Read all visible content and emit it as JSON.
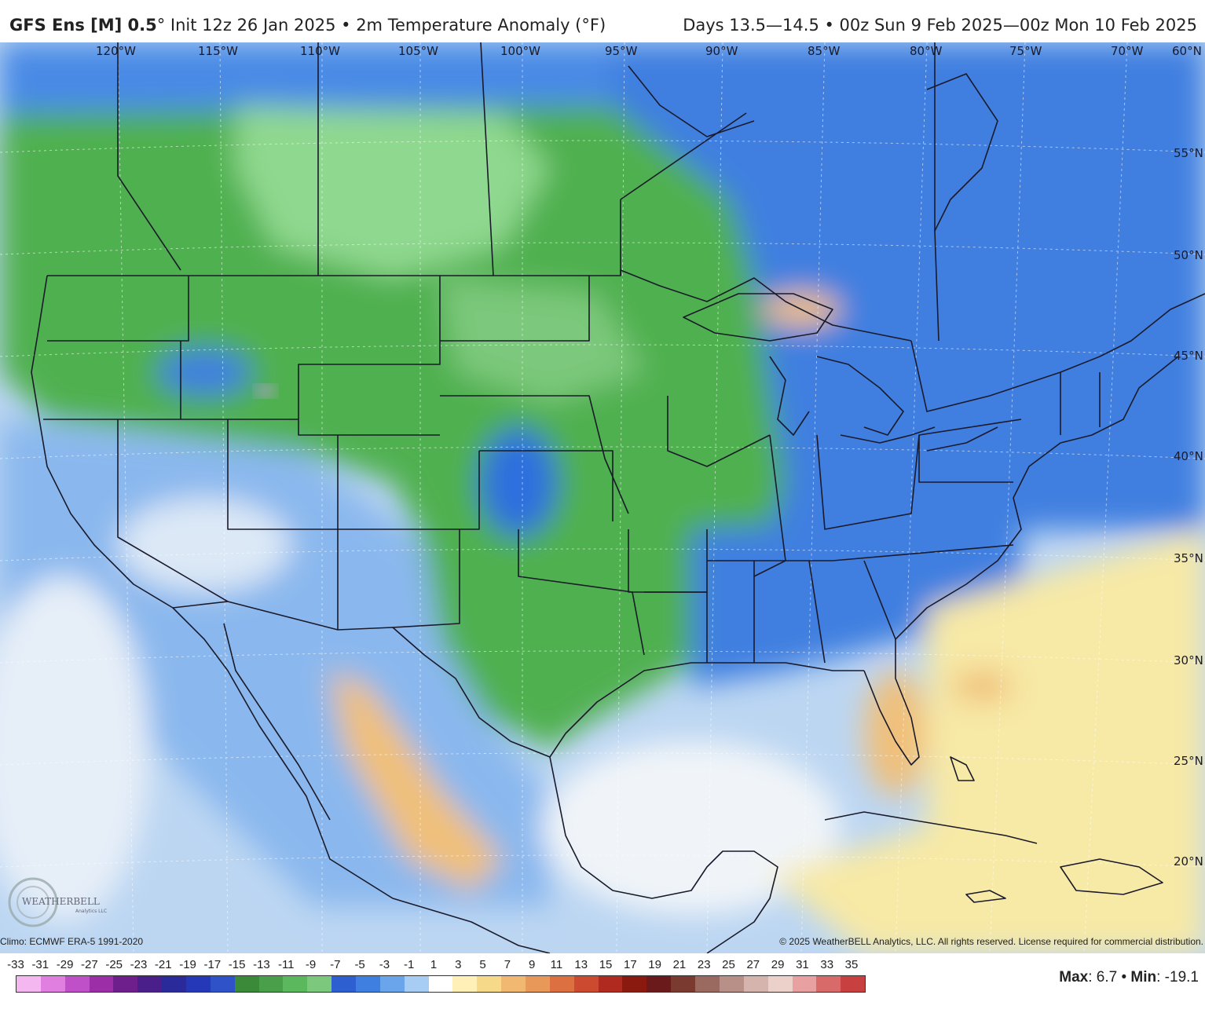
{
  "header": {
    "model": "GFS Ens [M] 0.5",
    "degree": "°",
    "init": " Init 12z 26 Jan 2025 • 2m Temperature Anomaly (°F)",
    "valid": "Days 13.5—14.5 • 00z Sun 9 Feb 2025—00z Mon 10 Feb 2025"
  },
  "map": {
    "lon_labels": [
      "120°W",
      "115°W",
      "110°W",
      "105°W",
      "100°W",
      "95°W",
      "90°W",
      "85°W",
      "80°W",
      "75°W",
      "70°W"
    ],
    "lat_labels": [
      "60°N",
      "55°N",
      "50°N",
      "45°N",
      "40°N",
      "35°N",
      "30°N",
      "25°N",
      "20°N"
    ],
    "colors": {
      "warm": "#f7e9a6",
      "warmer": "#f0c07a",
      "warmest": "#e8a070",
      "neutral": "#f0f4f8",
      "cool_light": "#bcd6f2",
      "cool": "#6aa4ea",
      "cold": "#2f6fde",
      "green_light": "#7fd07f",
      "green": "#4fb04f",
      "green_dark": "#2f8f2f",
      "purple": "#c8a0e0"
    }
  },
  "footer": {
    "climo": "Climo: ECMWF ERA-5 1991-2020",
    "copyright": "© 2025 WeatherBELL Analytics, LLC. All rights reserved. License required for commercial distribution."
  },
  "logo": {
    "text": "WEATHERBELL",
    "sub": "Analytics LLC"
  },
  "legend": {
    "ticks": [
      "-33",
      "-31",
      "-29",
      "-27",
      "-25",
      "-23",
      "-21",
      "-19",
      "-17",
      "-15",
      "-13",
      "-11",
      "-9",
      "-7",
      "-5",
      "-3",
      "-1",
      "1",
      "3",
      "5",
      "7",
      "9",
      "11",
      "13",
      "15",
      "17",
      "19",
      "21",
      "23",
      "25",
      "27",
      "29",
      "31",
      "33",
      "35"
    ],
    "colors": [
      "#f5b7f0",
      "#e07fe0",
      "#c050c8",
      "#9c2fa8",
      "#6e1f8c",
      "#4a1f8a",
      "#2a2a9a",
      "#2438b8",
      "#2f52c8",
      "#3a8a3a",
      "#4aa04a",
      "#5cb85c",
      "#7cc87c",
      "#2d5fd0",
      "#3f7fe0",
      "#6aa4ea",
      "#a8cdf4",
      "#ffffff",
      "#fff0b8",
      "#f7d98a",
      "#f0b870",
      "#e89858",
      "#dd7040",
      "#cc4a30",
      "#b02a20",
      "#8a1a10",
      "#6a1a1a",
      "#7a3a30",
      "#9a6a60",
      "#b89088",
      "#d4b4ac",
      "#ecd0ca",
      "#e8a0a0",
      "#d86a6a",
      "#c84040"
    ]
  },
  "maxmin": {
    "max_label": "Max",
    "max_value": ": 6.7 • ",
    "min_label": "Min",
    "min_value": ": -19.1"
  }
}
